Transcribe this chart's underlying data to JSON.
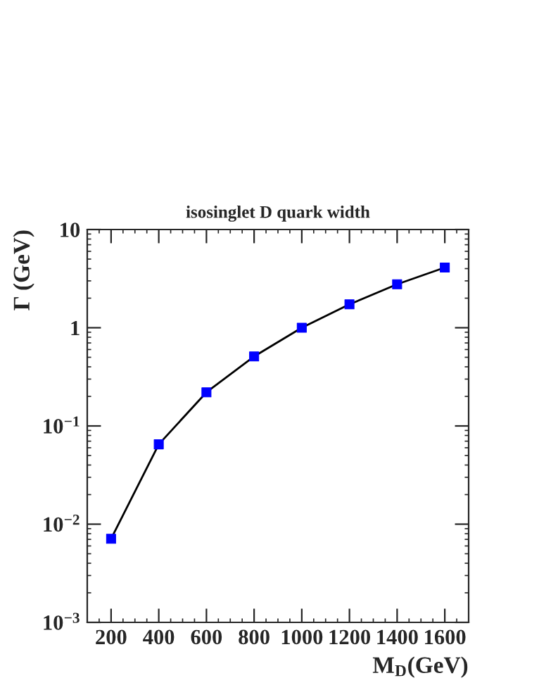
{
  "chart_data": {
    "type": "line",
    "title": "isosinglet D quark width",
    "xlabel": "M$_{D}$(GeV)",
    "ylabel": "Γ (GeV)",
    "x": [
      200,
      400,
      600,
      800,
      1000,
      1200,
      1400,
      1600
    ],
    "series": [
      {
        "color": "#0000ff",
        "values": [
          0.0071,
          0.065,
          0.22,
          0.51,
          1.0,
          1.73,
          2.77,
          4.1
        ]
      }
    ],
    "log": "y",
    "marker": "square",
    "line_style": "solid",
    "grid": false,
    "legend": false,
    "xlim": [
      100,
      1700
    ],
    "xticks": [
      200,
      400,
      600,
      800,
      1000,
      1200,
      1400,
      1600
    ],
    "ylim": [
      0.001,
      10
    ],
    "yticks": [
      {
        "value": 0.001,
        "label": "10$^{−3}$"
      },
      {
        "value": 0.01,
        "label": "10$^{−2}$"
      },
      {
        "value": 0.1,
        "label": "10$^{−1}$"
      },
      1,
      10
    ]
  }
}
